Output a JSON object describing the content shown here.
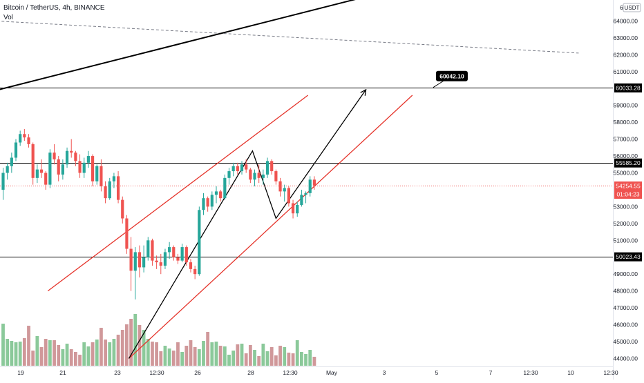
{
  "header": {
    "symbol": "Bitcoin / TetherUS",
    "interval": "4h",
    "exchange": "BINANCE",
    "volume_label": "Vol"
  },
  "price_axis": {
    "top_label": "6",
    "currency": "USDT",
    "ticks": [
      "64000.00",
      "63000.00",
      "62000.00",
      "61000.00",
      "59000.00",
      "58000.00",
      "57000.00",
      "56000.00",
      "55000.00",
      "53000.00",
      "52000.00",
      "51000.00",
      "49000.00",
      "48000.00",
      "47000.00",
      "46000.00",
      "45000.00",
      "44000.00"
    ]
  },
  "time_axis": {
    "labels": [
      "19",
      "21",
      "23",
      "12:30",
      "26",
      "28",
      "12:30",
      "May",
      "3",
      "5",
      "7",
      "12:30",
      "10",
      "12:30"
    ]
  },
  "levels": [
    {
      "price": 60033.28,
      "label": "60033.28"
    },
    {
      "price": 55585.2,
      "label": "55585.20"
    },
    {
      "price": 50023.43,
      "label": "50023.43"
    }
  ],
  "current_price": {
    "label": "54254.55",
    "countdown": "01:04:23",
    "color": "#ef5350"
  },
  "target_callout": {
    "label": "60042.10"
  },
  "colors": {
    "up": "#26a69a",
    "down": "#ef5350",
    "vol_up": "#8bc99a",
    "vol_down": "#d0989a",
    "channel": "#e5332a",
    "drawing": "#000000"
  },
  "chart_data": {
    "type": "candlestick",
    "title": "",
    "ylim": [
      44000,
      65000
    ],
    "ohlc": [
      [
        54000,
        55300,
        53400,
        55000
      ],
      [
        55000,
        55600,
        54600,
        55400
      ],
      [
        55400,
        56200,
        55000,
        55900
      ],
      [
        55900,
        57000,
        55700,
        56800
      ],
      [
        56800,
        57500,
        56600,
        57300
      ],
      [
        57300,
        57600,
        56900,
        57100
      ],
      [
        57100,
        57300,
        56500,
        56700
      ],
      [
        56700,
        56800,
        54300,
        54700
      ],
      [
        54700,
        55500,
        54400,
        55200
      ],
      [
        55200,
        55800,
        54700,
        55000
      ],
      [
        55000,
        55100,
        54000,
        54300
      ],
      [
        54300,
        56400,
        54100,
        56200
      ],
      [
        56200,
        56700,
        55500,
        55800
      ],
      [
        55800,
        56000,
        54500,
        54900
      ],
      [
        54900,
        55800,
        54600,
        55500
      ],
      [
        55500,
        56500,
        55300,
        56300
      ],
      [
        56300,
        57000,
        55900,
        56200
      ],
      [
        56200,
        56300,
        55400,
        55700
      ],
      [
        55700,
        56100,
        54700,
        55000
      ],
      [
        55000,
        55900,
        54700,
        55600
      ],
      [
        55600,
        56300,
        55300,
        56000
      ],
      [
        56000,
        56100,
        54200,
        54500
      ],
      [
        54500,
        55500,
        54300,
        55400
      ],
      [
        55400,
        55800,
        53900,
        54200
      ],
      [
        54200,
        54500,
        53200,
        53500
      ],
      [
        53500,
        54700,
        53400,
        54500
      ],
      [
        54500,
        55000,
        54100,
        54800
      ],
      [
        54800,
        55100,
        53200,
        53400
      ],
      [
        53400,
        53600,
        52000,
        52300
      ],
      [
        52300,
        52500,
        50200,
        50500
      ],
      [
        50500,
        51200,
        48000,
        49200
      ],
      [
        49200,
        50600,
        47500,
        50300
      ],
      [
        50300,
        50700,
        48800,
        49400
      ],
      [
        49400,
        50700,
        49100,
        50000
      ],
      [
        50000,
        51200,
        49800,
        51000
      ],
      [
        51000,
        51100,
        49500,
        49800
      ],
      [
        49800,
        50100,
        49300,
        49700
      ],
      [
        49700,
        50200,
        49000,
        49500
      ],
      [
        49500,
        50500,
        49300,
        50300
      ],
      [
        50300,
        50900,
        49900,
        50600
      ],
      [
        50600,
        50700,
        49800,
        50000
      ],
      [
        50000,
        50200,
        49600,
        49800
      ],
      [
        49800,
        50800,
        49700,
        50600
      ],
      [
        50600,
        50700,
        49500,
        49700
      ],
      [
        49700,
        49900,
        49100,
        49300
      ],
      [
        49300,
        49500,
        48700,
        49000
      ],
      [
        49000,
        53000,
        48900,
        52800
      ],
      [
        52800,
        53800,
        52500,
        53500
      ],
      [
        53500,
        53600,
        52700,
        53000
      ],
      [
        53000,
        53900,
        52800,
        53700
      ],
      [
        53700,
        54200,
        53200,
        53900
      ],
      [
        53900,
        54000,
        53300,
        53500
      ],
      [
        53500,
        54900,
        53400,
        54700
      ],
      [
        54700,
        55300,
        54300,
        55100
      ],
      [
        55100,
        55600,
        54800,
        55400
      ],
      [
        55400,
        55600,
        54900,
        55100
      ],
      [
        55100,
        55700,
        54900,
        55500
      ],
      [
        55500,
        55800,
        55000,
        55200
      ],
      [
        55200,
        55300,
        54400,
        54600
      ],
      [
        54600,
        55200,
        54200,
        55000
      ],
      [
        55000,
        55500,
        54400,
        54700
      ],
      [
        54700,
        55200,
        54300,
        54900
      ],
      [
        54900,
        55900,
        54700,
        55700
      ],
      [
        55700,
        55800,
        54900,
        55100
      ],
      [
        55100,
        55200,
        54300,
        54500
      ],
      [
        54500,
        54700,
        53600,
        53900
      ],
      [
        53900,
        54300,
        53300,
        54100
      ],
      [
        54100,
        54200,
        53000,
        53200
      ],
      [
        53200,
        53400,
        52300,
        52600
      ],
      [
        52600,
        53300,
        52400,
        53100
      ],
      [
        53100,
        54000,
        53000,
        53700
      ],
      [
        53700,
        53900,
        53200,
        53800
      ],
      [
        53800,
        54800,
        53600,
        54600
      ],
      [
        54600,
        54800,
        54000,
        54254
      ]
    ],
    "volume": [
      61,
      39,
      36,
      34,
      35,
      40,
      58,
      22,
      43,
      27,
      39,
      37,
      37,
      30,
      24,
      32,
      24,
      20,
      16,
      34,
      28,
      34,
      38,
      55,
      38,
      34,
      39,
      45,
      52,
      60,
      68,
      75,
      59,
      52,
      39,
      35,
      34,
      21,
      29,
      25,
      22,
      34,
      20,
      29,
      37,
      27,
      24,
      36,
      49,
      34,
      35,
      29,
      28,
      16,
      22,
      31,
      32,
      18,
      30,
      23,
      14,
      32,
      21,
      27,
      15,
      29,
      27,
      19,
      18,
      37,
      20,
      17,
      23,
      13
    ],
    "lines": [
      {
        "name": "",
        "style": "dashed",
        "from": {
          "bar": -1.5,
          "price": 64000
        },
        "to": {
          "bar": 135,
          "price": 62100
        }
      },
      {
        "name": "",
        "style": "solid",
        "from": {
          "bar": -1.5,
          "price": 59900
        },
        "to": {
          "bar": 86,
          "price": 65500
        }
      },
      {
        "name": "",
        "style": "channel",
        "from": {
          "bar": 10.5,
          "price": 48000
        },
        "to": {
          "bar": 71.5,
          "price": 59600
        }
      },
      {
        "name": "",
        "style": "channel",
        "from": {
          "bar": 29.5,
          "price": 44000
        },
        "to": {
          "bar": 96,
          "price": 59600
        }
      }
    ],
    "path": [
      {
        "bar": 29.5,
        "price": 44000
      },
      {
        "bar": 58.5,
        "price": 56300
      },
      {
        "bar": 64,
        "price": 52300
      },
      {
        "bar": 85,
        "price": 59900
      }
    ]
  }
}
